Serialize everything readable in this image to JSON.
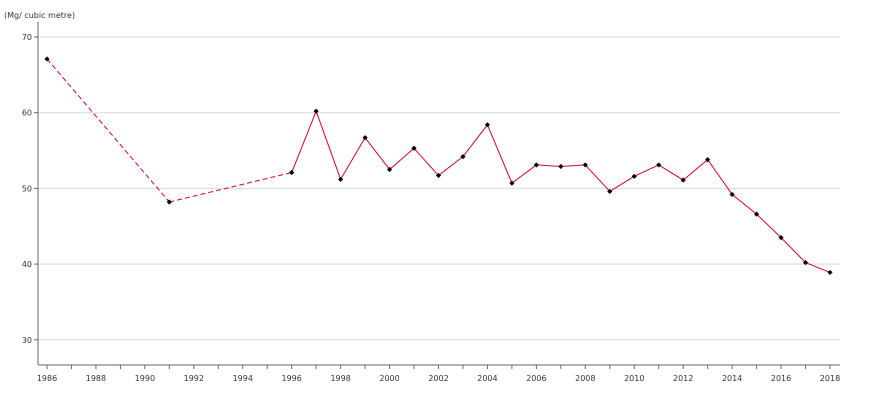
{
  "chart_data": {
    "type": "line",
    "ylabel": "(Mg/ cubic metre)",
    "xlim": [
      1986,
      2018
    ],
    "ylim": [
      27,
      70
    ],
    "y_ticks": [
      30,
      40,
      50,
      60,
      70
    ],
    "x_ticks": [
      1986,
      1988,
      1990,
      1992,
      1994,
      1996,
      1998,
      2000,
      2002,
      2004,
      2006,
      2008,
      2010,
      2012,
      2014,
      2016,
      2018
    ],
    "grid": "horizontal",
    "line_color": "#d4003a",
    "marker_color": "#000000",
    "dashed_segments_until_x": 1996,
    "x": [
      1986,
      1991,
      1996,
      1997,
      1998,
      1999,
      2000,
      2001,
      2002,
      2003,
      2004,
      2005,
      2006,
      2007,
      2008,
      2009,
      2010,
      2011,
      2012,
      2013,
      2014,
      2015,
      2016,
      2017,
      2018
    ],
    "values": [
      67.1,
      48.2,
      52.1,
      60.2,
      51.2,
      56.7,
      52.5,
      55.3,
      51.7,
      54.2,
      58.4,
      50.7,
      53.1,
      52.9,
      53.1,
      49.6,
      51.6,
      53.1,
      51.1,
      53.8,
      49.2,
      46.6,
      43.5,
      40.2,
      38.9
    ]
  }
}
